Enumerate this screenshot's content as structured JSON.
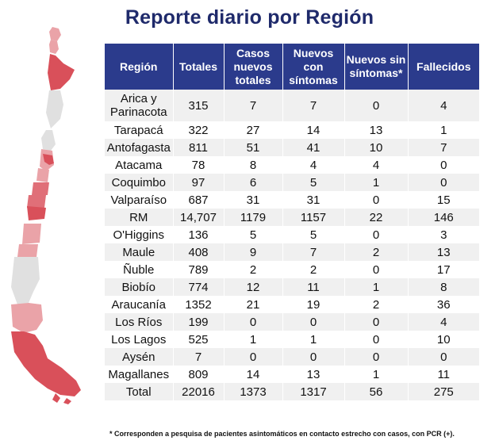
{
  "title": "Reporte diario por Región",
  "headers": [
    "Región",
    "Totales",
    "Casos nuevos totales",
    "Nuevos con síntomas",
    "Nuevos sin síntomas*",
    "Fallecidos"
  ],
  "rows": [
    [
      "Arica y Parinacota",
      "315",
      "7",
      "7",
      "0",
      "4"
    ],
    [
      "Tarapacá",
      "322",
      "27",
      "14",
      "13",
      "1"
    ],
    [
      "Antofagasta",
      "811",
      "51",
      "41",
      "10",
      "7"
    ],
    [
      "Atacama",
      "78",
      "8",
      "4",
      "4",
      "0"
    ],
    [
      "Coquimbo",
      "97",
      "6",
      "5",
      "1",
      "0"
    ],
    [
      "Valparaíso",
      "687",
      "31",
      "31",
      "0",
      "15"
    ],
    [
      "RM",
      "14,707",
      "1179",
      "1157",
      "22",
      "146"
    ],
    [
      "O'Higgins",
      "136",
      "5",
      "5",
      "0",
      "3"
    ],
    [
      "Maule",
      "408",
      "9",
      "7",
      "2",
      "13"
    ],
    [
      "Ñuble",
      "789",
      "2",
      "2",
      "0",
      "17"
    ],
    [
      "Biobío",
      "774",
      "12",
      "11",
      "1",
      "8"
    ],
    [
      "Araucanía",
      "1352",
      "21",
      "19",
      "2",
      "36"
    ],
    [
      "Los Ríos",
      "199",
      "0",
      "0",
      "0",
      "4"
    ],
    [
      "Los Lagos",
      "525",
      "1",
      "1",
      "0",
      "10"
    ],
    [
      "Aysén",
      "7",
      "0",
      "0",
      "0",
      "0"
    ],
    [
      "Magallanes",
      "809",
      "14",
      "13",
      "1",
      "11"
    ],
    [
      "Total",
      "22016",
      "1373",
      "1317",
      "56",
      "275"
    ]
  ],
  "footnote": "* Corresponden a pesquisa de pacientes asintomáticos en contacto estrecho con casos, con PCR (+).",
  "colors": {
    "header_bg": "#2b3b8c",
    "title": "#1f2a6b",
    "map_dark": "#d9505a",
    "map_mid": "#e06f78",
    "map_light": "#eaa3a8",
    "map_gray": "#e0e0e0"
  }
}
